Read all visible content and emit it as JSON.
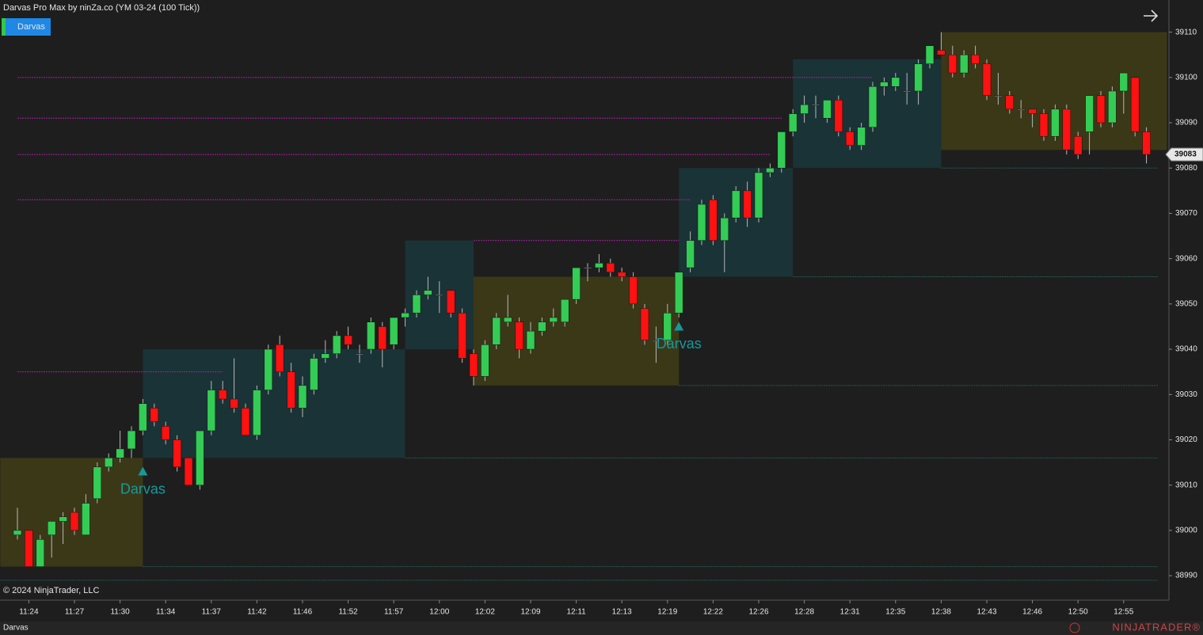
{
  "header": {
    "title": "Darvas Pro Max by ninZa.co (YM 03-24 (100 Tick))",
    "indicator_button": "Darvas"
  },
  "footer": {
    "copyright": "© 2024 NinjaTrader, LLC",
    "tab": "Darvas",
    "logo": "NINJATRADER®"
  },
  "chart_data": {
    "type": "candlestick",
    "categories": [
      null,
      "11:24",
      null,
      null,
      null,
      "11:27",
      null,
      null,
      null,
      "11:30",
      null,
      null,
      null,
      "11:34",
      null,
      null,
      null,
      "11:37",
      null,
      null,
      null,
      "11:42",
      null,
      null,
      null,
      "11:46",
      null,
      null,
      null,
      "11:52",
      null,
      null,
      null,
      "11:57",
      null,
      null,
      null,
      "12:00",
      null,
      null,
      null,
      "12:02",
      null,
      null,
      null,
      "12:09",
      null,
      null,
      null,
      "12:11",
      null,
      null,
      null,
      "12:13",
      null,
      null,
      null,
      "12:19",
      null,
      null,
      null,
      "12:22",
      null,
      null,
      null,
      "12:26",
      null,
      null,
      null,
      "12:28",
      null,
      null,
      null,
      "12:31",
      null,
      null,
      null,
      "12:35",
      null,
      null,
      null,
      "12:38",
      null,
      null,
      null,
      "12:43",
      null,
      null,
      null,
      "12:46",
      null,
      null,
      null,
      "12:50",
      null,
      null,
      null,
      "12:55",
      null,
      null
    ],
    "open": [
      38999,
      39000,
      38992,
      38999,
      39002,
      39004,
      38999,
      39007,
      39014,
      39016,
      39018,
      39022,
      39027,
      39023,
      39020,
      39016,
      39010,
      39022,
      39031,
      39029,
      39027,
      39021,
      39031,
      39041,
      39035,
      39027,
      39031,
      39038,
      39039,
      39043,
      39039,
      39040,
      39045,
      39041,
      39047,
      39048,
      39052,
      39052,
      39053,
      39048,
      39039,
      39034,
      39041,
      39046,
      39046,
      39040,
      39044,
      39046,
      39046,
      39051,
      39058,
      39058,
      39059,
      39057,
      39056,
      39049,
      39042,
      39042,
      39048,
      39058,
      39064,
      39073,
      39064,
      39069,
      39075,
      39069,
      39079,
      39080,
      39088,
      39092,
      39094,
      39091,
      39095,
      39088,
      39085,
      39089,
      39098,
      39098,
      39097,
      39097,
      39103,
      39106,
      39105,
      39101,
      39105,
      39103,
      39096,
      39096,
      39093,
      39093,
      39092,
      39087,
      39093,
      39087,
      39088,
      39096,
      39090,
      39097,
      39100,
      39088
    ],
    "high": [
      39005,
      39000,
      38999,
      39002,
      39004,
      39005,
      39008,
      39015,
      39017,
      39022,
      39023,
      39029,
      39028,
      39024,
      39021,
      39016,
      39022,
      39033,
      39033,
      39038,
      39028,
      39032,
      39041,
      39043,
      39037,
      39034,
      39039,
      39042,
      39044,
      39045,
      39041,
      39047,
      39046,
      39047,
      39049,
      39053,
      39056,
      39055,
      39053,
      39049,
      39040,
      39042,
      39048,
      39052,
      39047,
      39046,
      39047,
      39049,
      39051,
      39058,
      39059,
      39061,
      39060,
      39058,
      39057,
      39050,
      39045,
      39050,
      39057,
      39066,
      39073,
      39074,
      39070,
      39076,
      39077,
      39080,
      39081,
      39088,
      39093,
      39096,
      39096,
      39095,
      39096,
      39089,
      39090,
      39099,
      39100,
      39101,
      39101,
      39104,
      39107,
      39110,
      39107,
      39106,
      39107,
      39104,
      39101,
      39097,
      39095,
      39093,
      39093,
      39094,
      39094,
      39088,
      39096,
      39097,
      39098,
      39101,
      39100,
      39089
    ],
    "low": [
      38998,
      38992,
      38992,
      38994,
      38997,
      38999,
      38999,
      39006,
      39013,
      39015,
      39016,
      39021,
      39023,
      39019,
      39013,
      39010,
      39009,
      39021,
      39028,
      39026,
      39021,
      39020,
      39030,
      39034,
      39026,
      39025,
      39030,
      39037,
      39038,
      39040,
      39037,
      39039,
      39036,
      39040,
      39045,
      39047,
      39051,
      39048,
      39047,
      39037,
      39032,
      39033,
      39040,
      39045,
      39038,
      39039,
      39043,
      39045,
      39045,
      39050,
      39055,
      39057,
      39056,
      39055,
      39049,
      39041,
      39037,
      39041,
      39047,
      39057,
      39063,
      39063,
      39057,
      39068,
      39067,
      39068,
      39078,
      39079,
      39087,
      39090,
      39091,
      39090,
      39087,
      39084,
      39084,
      39088,
      39096,
      39097,
      39094,
      39094,
      39102,
      39105,
      39100,
      39100,
      39102,
      39095,
      39094,
      39092,
      39091,
      39089,
      39086,
      39086,
      39083,
      39082,
      39083,
      39089,
      39089,
      39092,
      39087,
      39081
    ],
    "close": [
      39000,
      38992,
      38998,
      39002,
      39003,
      39000,
      39006,
      39014,
      39016,
      39018,
      39022,
      39028,
      39024,
      39020,
      39014,
      39010,
      39022,
      39031,
      39029,
      39027,
      39021,
      39031,
      39040,
      39035,
      39027,
      39032,
      39038,
      39039,
      39043,
      39041,
      39039,
      39046,
      39040,
      39047,
      39048,
      39052,
      39053,
      39052,
      39048,
      39038,
      39034,
      39041,
      39047,
      39047,
      39040,
      39044,
      39046,
      39047,
      39051,
      39058,
      39058,
      39059,
      39057,
      39056,
      39050,
      39042,
      39042,
      39048,
      39057,
      39064,
      39072,
      39064,
      39069,
      39075,
      39069,
      39079,
      39080,
      39088,
      39092,
      39094,
      39094,
      39095,
      39088,
      39085,
      39089,
      39098,
      39099,
      39100,
      39097,
      39103,
      39107,
      39105,
      39101,
      39105,
      39103,
      39096,
      39096,
      39093,
      39093,
      39092,
      39087,
      39093,
      39084,
      39083,
      39096,
      39090,
      39097,
      39101,
      39088,
      39083
    ],
    "up_color": "#33cc55",
    "down_color": "#ff1111",
    "wick_color": "#b8b8b8",
    "boxes": [
      {
        "from": -1.5,
        "to": 11,
        "top": 39016,
        "bottom": 38992,
        "color": "#3b3818"
      },
      {
        "from": 11,
        "to": 34,
        "top": 39040,
        "bottom": 39016,
        "color": "#1a3336"
      },
      {
        "from": 34,
        "to": 40,
        "top": 39064,
        "bottom": 39040,
        "color": "#1a3336"
      },
      {
        "from": 40,
        "to": 58,
        "top": 39056,
        "bottom": 39032,
        "color": "#3b3818"
      },
      {
        "from": 58,
        "to": 68,
        "top": 39080,
        "bottom": 39056,
        "color": "#1a3336"
      },
      {
        "from": 68,
        "to": 81,
        "top": 39104,
        "bottom": 39080,
        "color": "#1a3336"
      },
      {
        "from": 81,
        "to": 100.8,
        "top": 39110,
        "bottom": 39084,
        "color": "#3b3818"
      }
    ],
    "levels": [
      {
        "value": 39100,
        "from": 0,
        "to": 75,
        "color": "#a020a0"
      },
      {
        "value": 39091,
        "from": 0,
        "to": 67,
        "color": "#a020a0"
      },
      {
        "value": 39083,
        "from": 0,
        "to": 66,
        "color": "#a020a0"
      },
      {
        "value": 39073,
        "from": 0,
        "to": 59,
        "color": "#a020a0"
      },
      {
        "value": 39064,
        "from": 40,
        "to": 58,
        "color": "#a020a0"
      },
      {
        "value": 39035,
        "from": 0,
        "to": 18,
        "color": "#a020a0"
      },
      {
        "value": 38992,
        "from": 11,
        "to": 100,
        "color": "#235a52"
      },
      {
        "value": 38989,
        "from": -1.5,
        "to": 100,
        "color": "#235a52"
      },
      {
        "value": 39016,
        "from": 34,
        "to": 100,
        "color": "#235a52"
      },
      {
        "value": 39032,
        "from": 58,
        "to": 100,
        "color": "#235a52"
      },
      {
        "value": 39056,
        "from": 68,
        "to": 100,
        "color": "#235a52"
      },
      {
        "value": 39080,
        "from": 81,
        "to": 100,
        "color": "#235a52"
      }
    ],
    "signals": [
      {
        "index": 11,
        "value": 39013,
        "label": "Darvas"
      },
      {
        "index": 58,
        "value": 39045,
        "label": "Darvas"
      }
    ],
    "signal_color": "#16999a",
    "last_price": 39083,
    "ylim": [
      38984.6,
      39117.1
    ],
    "yticks": [
      38990,
      39000,
      39010,
      39020,
      39030,
      39040,
      39050,
      39060,
      39070,
      39080,
      39090,
      39100,
      39110
    ]
  }
}
